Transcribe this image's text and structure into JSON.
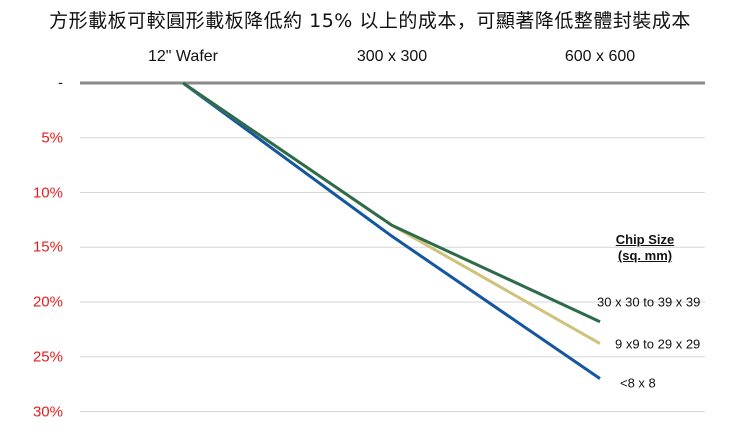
{
  "title": "方形載板可較圓形載板降低約 15% 以上的成本，可顯著降低整體封裝成本",
  "chart_data": {
    "type": "line",
    "title": "方形載板可較圓形載板降低約 15% 以上的成本，可顯著降低整體封裝成本",
    "xlabel": "",
    "ylabel": "",
    "categories": [
      "12\" Wafer",
      "300 x 300",
      "600 x 600"
    ],
    "y_tick_labels": [
      "-",
      "5%",
      "10%",
      "15%",
      "20%",
      "25%",
      "30%"
    ],
    "y_ticks": [
      0,
      5,
      10,
      15,
      20,
      25,
      30
    ],
    "ylim": [
      0,
      30
    ],
    "y_inverted": true,
    "x_axis_position": "top",
    "grid": true,
    "legend_title": "Chip Size (sq. mm)",
    "legend_position": "right",
    "series": [
      {
        "name": "30 x 30 to 39 x 39",
        "color": "#2e6b4a",
        "values": [
          0,
          13.0,
          21.8
        ]
      },
      {
        "name": "9 x9 to 29 x 29",
        "color": "#cfc27a",
        "values": [
          0,
          13.0,
          23.8
        ]
      },
      {
        "name": "<8 x 8",
        "color": "#1457a0",
        "values": [
          0,
          14.0,
          27.0
        ]
      }
    ]
  },
  "legend": {
    "title_line1": "Chip Size",
    "title_line2": "(sq. mm)"
  }
}
